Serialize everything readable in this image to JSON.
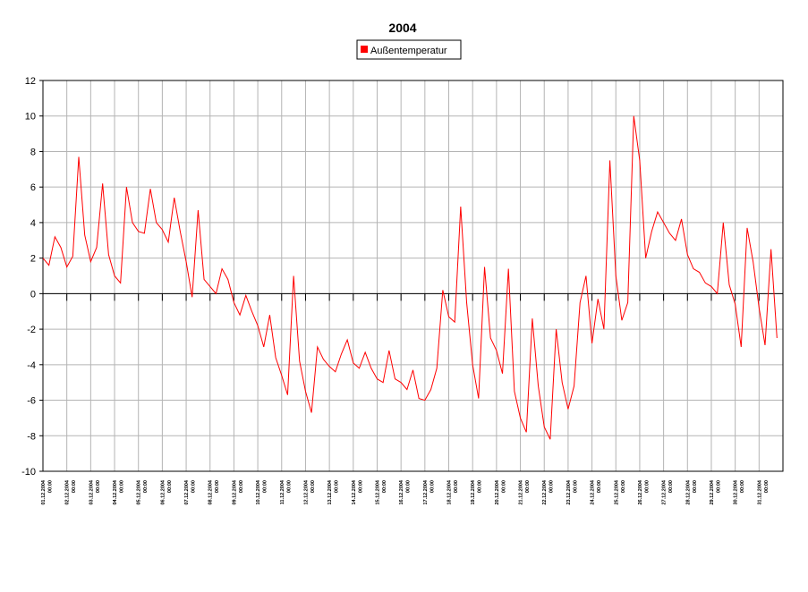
{
  "chart_data": {
    "type": "line",
    "title": "2004",
    "categories": [
      "01.12.2004 00:00",
      null,
      null,
      null,
      "02.12.2004 00:00",
      null,
      null,
      null,
      "03.12.2004 00:00",
      null,
      null,
      null,
      "04.12.2004 00:00",
      null,
      null,
      null,
      "05.12.2004 00:00",
      null,
      null,
      null,
      "06.12.2004 00:00",
      null,
      null,
      null,
      "07.12.2004 00:00",
      null,
      null,
      null,
      "08.12.2004 00:00",
      null,
      null,
      null,
      "09.12.2004 00:00",
      null,
      null,
      null,
      "10.12.2004 00:00",
      null,
      null,
      null,
      "11.12.2004 00:00",
      null,
      null,
      null,
      "12.12.2004 00:00",
      null,
      null,
      null,
      "13.12.2004 00:00",
      null,
      null,
      null,
      "14.12.2004 00:00",
      null,
      null,
      null,
      "15.12.2004 00:00",
      null,
      null,
      null,
      "16.12.2004 00:00",
      null,
      null,
      null,
      "17.12.2004 00:00",
      null,
      null,
      null,
      "18.12.2004 00:00",
      null,
      null,
      null,
      "19.12.2004 00:00",
      null,
      null,
      null,
      "20.12.2004 00:00",
      null,
      null,
      null,
      "21.12.2004 00:00",
      null,
      null,
      null,
      "22.12.2004 00:00",
      null,
      null,
      null,
      "23.12.2004 00:00",
      null,
      null,
      null,
      "24.12.2004 00:00",
      null,
      null,
      null,
      "25.12.2004 00:00",
      null,
      null,
      null,
      "26.12.2004 00:00",
      null,
      null,
      null,
      "27.12.2004 00:00",
      null,
      null,
      null,
      "28.12.2004 00:00",
      null,
      null,
      null,
      "29.12.2004 00:00",
      null,
      null,
      null,
      "30.12.2004 00:00",
      null,
      null,
      null,
      "31.12.2004 00:00",
      null,
      null,
      null
    ],
    "series": [
      {
        "name": "Außentemperatur",
        "color": "#ff0000",
        "values": [
          2.0,
          1.6,
          3.2,
          2.6,
          1.5,
          2.1,
          7.7,
          3.3,
          1.8,
          2.6,
          6.2,
          2.2,
          1.0,
          0.6,
          6.0,
          4.0,
          3.5,
          3.4,
          5.9,
          4.0,
          3.6,
          2.9,
          5.4,
          3.5,
          1.8,
          -0.2,
          4.7,
          0.8,
          0.4,
          0.0,
          1.4,
          0.8,
          -0.5,
          -1.2,
          -0.1,
          -1.0,
          -1.8,
          -3.0,
          -1.2,
          -3.6,
          -4.6,
          -5.7,
          1.0,
          -3.8,
          -5.5,
          -6.7,
          -3.0,
          -3.7,
          -4.1,
          -4.4,
          -3.4,
          -2.6,
          -3.9,
          -4.2,
          -3.3,
          -4.2,
          -4.8,
          -5.0,
          -3.2,
          -4.8,
          -5.0,
          -5.4,
          -4.3,
          -5.9,
          -6.0,
          -5.4,
          -4.2,
          0.2,
          -1.3,
          -1.6,
          4.9,
          -0.5,
          -4.0,
          -5.9,
          1.5,
          -2.5,
          -3.2,
          -4.5,
          1.4,
          -5.5,
          -7.0,
          -7.8,
          -1.4,
          -5.2,
          -7.5,
          -8.2,
          -2.0,
          -5.0,
          -6.5,
          -5.2,
          -0.5,
          1.0,
          -2.8,
          -0.3,
          -2.0,
          7.5,
          1.0,
          -1.5,
          -0.5,
          10.0,
          7.5,
          2.0,
          3.5,
          4.6,
          4.0,
          3.4,
          3.0,
          4.2,
          2.2,
          1.4,
          1.2,
          0.6,
          0.4,
          0.0,
          4.0,
          0.5,
          -0.6,
          -3.0,
          3.7,
          1.8,
          -0.8,
          -2.9,
          2.5,
          -2.5
        ]
      }
    ],
    "ylim": [
      -10,
      12
    ],
    "yticks": [
      -10,
      -8,
      -6,
      -4,
      -2,
      0,
      2,
      4,
      6,
      8,
      10,
      12
    ],
    "grid": true,
    "legend": "top"
  }
}
